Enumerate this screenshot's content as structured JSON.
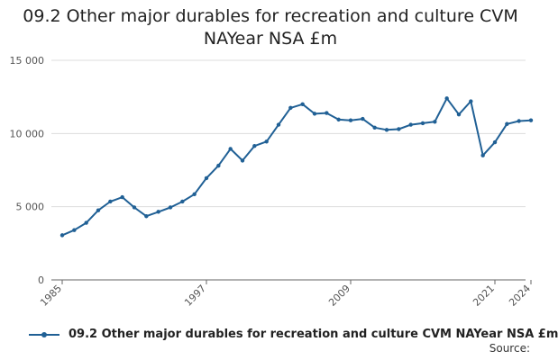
{
  "title_line1": "09.2 Other major durables for recreation and culture CVM",
  "title_line2": "NAYear NSA £m",
  "source_label": "Source:",
  "colors": {
    "series": "#206095",
    "grid": "#dddddd",
    "axis": "#666666",
    "text": "#555555"
  },
  "chart_data": {
    "type": "line",
    "title": "09.2 Other major durables for recreation and culture CVM NAYear NSA £m",
    "xlabel": "",
    "ylabel": "",
    "xlim": [
      1985,
      2024
    ],
    "ylim": [
      0,
      15000
    ],
    "y_ticks": [
      0,
      5000,
      10000,
      15000
    ],
    "y_tick_labels": [
      "0",
      "5 000",
      "10 000",
      "15 000"
    ],
    "x_ticks": [
      1985,
      1997,
      2009,
      2021,
      2024
    ],
    "x_tick_labels": [
      "1985",
      "1997",
      "2009",
      "2021",
      "2024"
    ],
    "grid": true,
    "legend_position": "bottom",
    "series": [
      {
        "name": "09.2 Other major durables for recreation and culture CVM NAYear NSA £m",
        "x": [
          1985,
          1986,
          1987,
          1988,
          1989,
          1990,
          1991,
          1992,
          1993,
          1994,
          1995,
          1996,
          1997,
          1998,
          1999,
          2000,
          2001,
          2002,
          2003,
          2004,
          2005,
          2006,
          2007,
          2008,
          2009,
          2010,
          2011,
          2012,
          2013,
          2014,
          2015,
          2016,
          2017,
          2018,
          2019,
          2020,
          2021,
          2022,
          2023,
          2024
        ],
        "values": [
          3050,
          3400,
          3900,
          4750,
          5350,
          5650,
          4950,
          4350,
          4650,
          4950,
          5350,
          5850,
          6950,
          7800,
          8950,
          8150,
          9150,
          9450,
          10600,
          11750,
          12000,
          11350,
          11400,
          10950,
          10900,
          11000,
          10400,
          10250,
          10300,
          10600,
          10700,
          10800,
          12400,
          11300,
          12200,
          8500,
          9400,
          10650,
          10850,
          10900
        ]
      }
    ]
  }
}
